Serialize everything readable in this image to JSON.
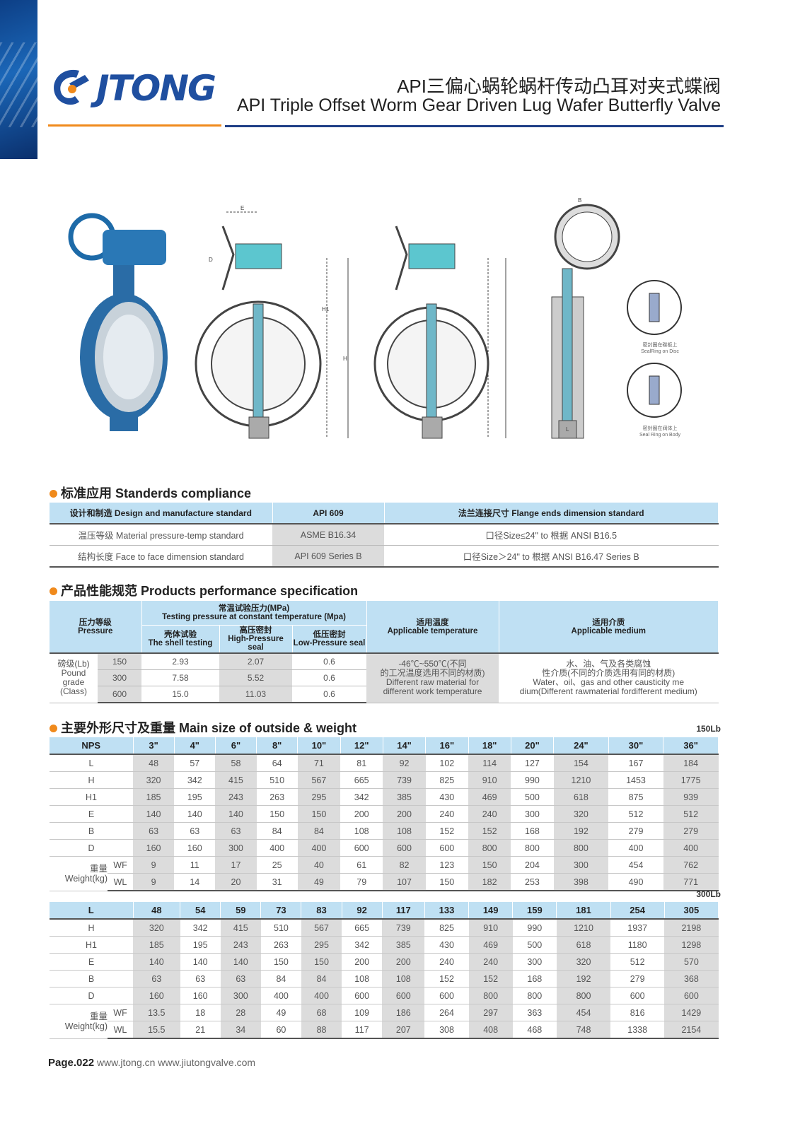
{
  "header": {
    "logo_text": "JTONG",
    "title_cn": "API三偏心蜗轮蜗杆传动凸耳对夹式蝶阀",
    "title_en": "API Triple Offset Worm Gear Driven Lug Wafer Butterfly Valve"
  },
  "drawings": {
    "dim_labels": [
      "E",
      "D",
      "H1",
      "H",
      "B",
      "L"
    ],
    "seal_disc": [
      "密封圈在碟板上",
      "SealRing on Disc"
    ],
    "seal_body": [
      "密封圈在阀体上",
      "Seal Ring on Body"
    ]
  },
  "standards": {
    "title": "标准应用 Standerds compliance",
    "header": [
      "设计和制造 Design and manufacture standard",
      "API 609",
      "法兰连接尺寸 Flange ends dimension standard"
    ],
    "rows": [
      [
        "温压等级 Material pressure-temp standard",
        "ASME B16.34",
        "口径Size≤24\" to 根据 ANSI B16.5"
      ],
      [
        "结构长度 Face to face dimension standard",
        "API 609 Series B",
        "口径Size＞24\" to 根据 ANSI B16.47 Series B"
      ]
    ]
  },
  "performance": {
    "title": "产品性能规范 Products performance specification",
    "h_pressure": [
      "压力等级",
      "Pressure"
    ],
    "h_testing": [
      "常温试验压力(MPa)",
      "Testing pressure at constant temperature (Mpa)"
    ],
    "h_shell": [
      "壳体试验",
      "The shell testing"
    ],
    "h_high": [
      "高压密封",
      "High-Pressure seal"
    ],
    "h_low": [
      "低压密封",
      "Low-Pressure seal"
    ],
    "h_temp": [
      "适用温度",
      "Applicable temperature"
    ],
    "h_medium": [
      "适用介质",
      "Applicable medium"
    ],
    "class_label": [
      "磅级(Lb)",
      "Pound",
      "grade",
      "(Class)"
    ],
    "rows": [
      [
        "150",
        "2.93",
        "2.07",
        "0.6"
      ],
      [
        "300",
        "7.58",
        "5.52",
        "0.6"
      ],
      [
        "600",
        "15.0",
        "11.03",
        "0.6"
      ]
    ],
    "temperature": [
      "-46℃~550℃(不同",
      "的工况温度选用不同的材质)",
      "Different raw material for",
      "different work temperature"
    ],
    "medium": [
      "水、油、气及各类腐蚀",
      "性介质(不同的介质选用有同的材质)",
      "Water、oil、gas and other causticity me",
      "dium(Different rawmaterial fordifferent medium)"
    ]
  },
  "sizes": {
    "title": "主要外形尺寸及重量 Main size of outside & weight",
    "weight_label": [
      "重量",
      "Weight(kg)"
    ],
    "class150": {
      "label": "150Lb",
      "header": [
        "NPS",
        "3\"",
        "4\"",
        "6\"",
        "8\"",
        "10\"",
        "12\"",
        "14\"",
        "16\"",
        "18\"",
        "20\"",
        "24\"",
        "30\"",
        "36\""
      ],
      "rows": [
        [
          "L",
          "48",
          "57",
          "58",
          "64",
          "71",
          "81",
          "92",
          "102",
          "114",
          "127",
          "154",
          "167",
          "184"
        ],
        [
          "H",
          "320",
          "342",
          "415",
          "510",
          "567",
          "665",
          "739",
          "825",
          "910",
          "990",
          "1210",
          "1453",
          "1775"
        ],
        [
          "H1",
          "185",
          "195",
          "243",
          "263",
          "295",
          "342",
          "385",
          "430",
          "469",
          "500",
          "618",
          "875",
          "939"
        ],
        [
          "E",
          "140",
          "140",
          "140",
          "150",
          "150",
          "200",
          "200",
          "240",
          "240",
          "300",
          "320",
          "512",
          "512"
        ],
        [
          "B",
          "63",
          "63",
          "63",
          "84",
          "84",
          "108",
          "108",
          "152",
          "152",
          "168",
          "192",
          "279",
          "279"
        ],
        [
          "D",
          "160",
          "160",
          "300",
          "400",
          "400",
          "600",
          "600",
          "600",
          "800",
          "800",
          "800",
          "400",
          "400"
        ],
        [
          "WF",
          "9",
          "11",
          "17",
          "25",
          "40",
          "61",
          "82",
          "123",
          "150",
          "204",
          "300",
          "454",
          "762"
        ],
        [
          "WL",
          "9",
          "14",
          "20",
          "31",
          "49",
          "79",
          "107",
          "150",
          "182",
          "253",
          "398",
          "490",
          "771"
        ]
      ]
    },
    "class300": {
      "label": "300Lb",
      "header": [
        "L",
        "48",
        "54",
        "59",
        "73",
        "83",
        "92",
        "117",
        "133",
        "149",
        "159",
        "181",
        "254",
        "305"
      ],
      "rows": [
        [
          "H",
          "320",
          "342",
          "415",
          "510",
          "567",
          "665",
          "739",
          "825",
          "910",
          "990",
          "1210",
          "1937",
          "2198"
        ],
        [
          "H1",
          "185",
          "195",
          "243",
          "263",
          "295",
          "342",
          "385",
          "430",
          "469",
          "500",
          "618",
          "1180",
          "1298"
        ],
        [
          "E",
          "140",
          "140",
          "140",
          "150",
          "150",
          "200",
          "200",
          "240",
          "240",
          "300",
          "320",
          "512",
          "570"
        ],
        [
          "B",
          "63",
          "63",
          "63",
          "84",
          "84",
          "108",
          "108",
          "152",
          "152",
          "168",
          "192",
          "279",
          "368"
        ],
        [
          "D",
          "160",
          "160",
          "300",
          "400",
          "400",
          "600",
          "600",
          "600",
          "800",
          "800",
          "800",
          "600",
          "600"
        ],
        [
          "WF",
          "13.5",
          "18",
          "28",
          "49",
          "68",
          "109",
          "186",
          "264",
          "297",
          "363",
          "454",
          "816",
          "1429"
        ],
        [
          "WL",
          "15.5",
          "21",
          "34",
          "60",
          "88",
          "117",
          "207",
          "308",
          "408",
          "468",
          "748",
          "1338",
          "2154"
        ]
      ]
    }
  },
  "footer": {
    "page": "Page.022",
    "urls": "www.jtong.cn  www.jiutongvalve.com"
  },
  "colors": {
    "brand_blue": "#1f4fa0",
    "accent_orange": "#f08a1c",
    "table_header": "#bfe0f3",
    "shade": "#dcdcdc"
  }
}
